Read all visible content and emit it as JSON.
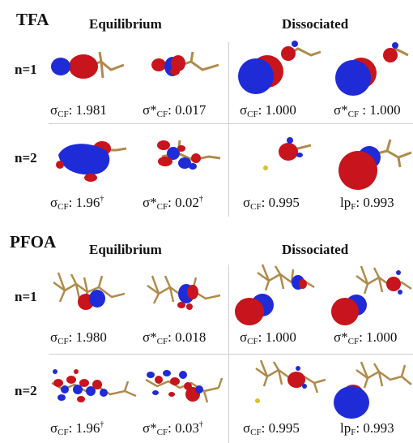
{
  "tfa": {
    "title": "TFA",
    "equilibrium": "Equilibrium",
    "dissociated": "Dissociated",
    "row1": {
      "label": "n=1",
      "cells": [
        {
          "sym": "σ",
          "sub": "CF",
          "rest": ": 1.981"
        },
        {
          "sym": "σ*",
          "sub": "CF",
          "rest": ": 0.017"
        },
        {
          "sym": "σ",
          "sub": "CF",
          "rest": ": 1.000"
        },
        {
          "sym": "σ*",
          "sub": "CF",
          "rest": " : 1.000"
        }
      ]
    },
    "row2": {
      "label": "n=2",
      "cells": [
        {
          "sym": "σ",
          "sub": "CF",
          "rest": ": 1.96",
          "sup": "†"
        },
        {
          "sym": "σ*",
          "sub": "CF",
          "rest": ": 0.02",
          "sup": "†"
        },
        {
          "sym": "σ",
          "sub": "CF",
          "rest": ": 0.995"
        },
        {
          "sym": "lp",
          "sub": "F",
          "rest": ": 0.993"
        }
      ]
    }
  },
  "pfoa": {
    "title": "PFOA",
    "equilibrium": "Equilibrium",
    "dissociated": "Dissociated",
    "row1": {
      "label": "n=1",
      "cells": [
        {
          "sym": "σ",
          "sub": "CF",
          "rest": ": 1.980"
        },
        {
          "sym": "σ*",
          "sub": "CF",
          "rest": ": 0.018"
        },
        {
          "sym": "σ",
          "sub": "CF",
          "rest": ": 1.000"
        },
        {
          "sym": "σ*",
          "sub": "CF",
          "rest": ": 1.000"
        }
      ]
    },
    "row2": {
      "label": "n=2",
      "cells": [
        {
          "sym": "σ",
          "sub": "CF",
          "rest": ": 1.96",
          "sup": "†"
        },
        {
          "sym": "σ*",
          "sub": "CF",
          "rest": ": 0.03",
          "sup": "†"
        },
        {
          "sym": "σ",
          "sub": "CF",
          "rest": ": 0.995"
        },
        {
          "sym": "lp",
          "sub": "F",
          "rest": ": 0.993"
        }
      ]
    }
  },
  "colors": {
    "positive_lobe": "#c8141c",
    "negative_lobe": "#1f2bd6",
    "bond": "#b08a4a",
    "grid": "#cfcfcf"
  }
}
